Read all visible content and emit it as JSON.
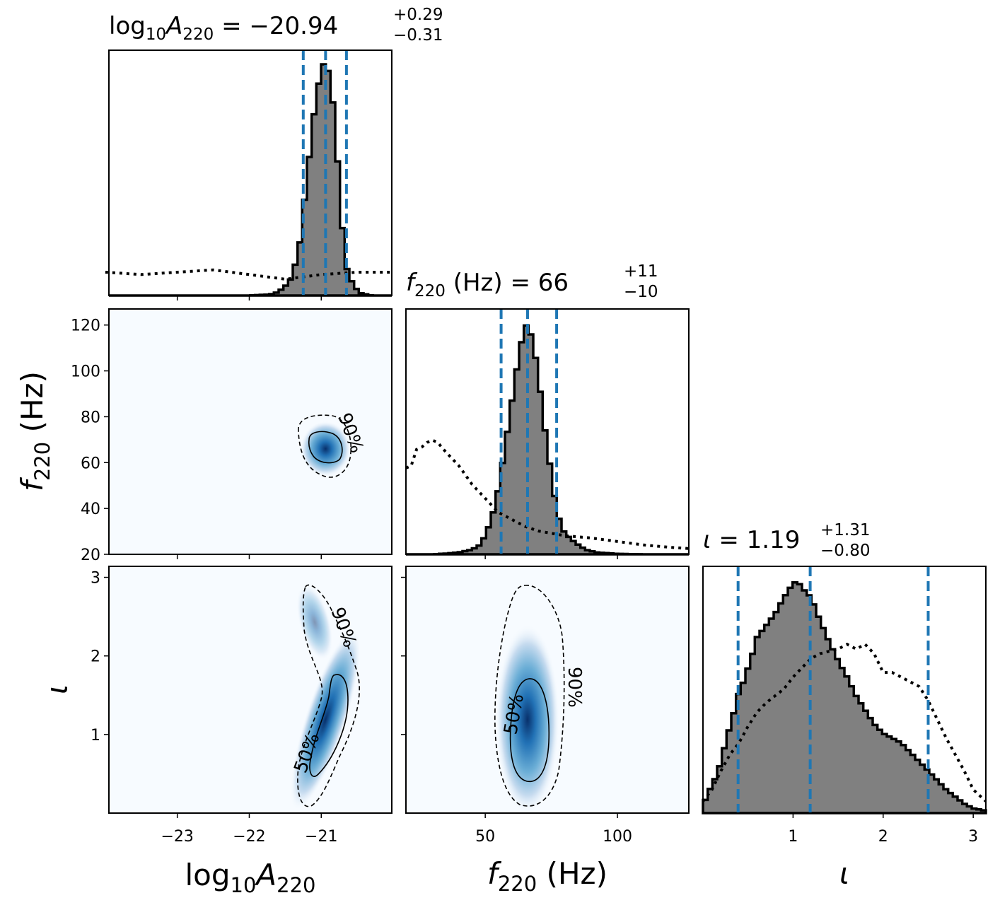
{
  "chart_data": {
    "type": "corner",
    "parameters": [
      {
        "key": "logA",
        "range": [
          -23.95,
          -20.02
        ],
        "ticks": [
          -23,
          -22,
          -21
        ],
        "tick_labels": [
          "−23",
          "−22",
          "−21"
        ]
      },
      {
        "key": "f",
        "range": [
          20,
          127
        ],
        "ticks": [
          50,
          100
        ],
        "tick_labels": [
          "50",
          "100"
        ],
        "yticks": [
          20,
          40,
          60,
          80,
          100,
          120
        ],
        "ytick_labels": [
          "20",
          "40",
          "60",
          "80",
          "100",
          "120"
        ]
      },
      {
        "key": "iota",
        "range": [
          0.0,
          3.14
        ],
        "ticks": [
          1,
          2,
          3
        ],
        "tick_labels": [
          "1",
          "2",
          "3"
        ]
      }
    ],
    "titles": {
      "logA": {
        "prefix": "log",
        "sub10": "10",
        "var": "A",
        "sub": "220",
        "value": " = −20.94",
        "sup": "+0.29",
        "low": "−0.31"
      },
      "f": {
        "var": "f",
        "sub": "220",
        "mid": " (Hz) = 66",
        "sup": "+11",
        "low": "−10"
      },
      "iota": {
        "var": "ι",
        "value": " = 1.19",
        "sup": "+1.31",
        "low": "−0.80"
      }
    },
    "axis_labels": {
      "logA": {
        "prefix": "log",
        "sub10": "10",
        "var": "A",
        "sub": "220"
      },
      "f": {
        "var": "f",
        "sub": "220",
        "unit": " (Hz)"
      },
      "iota": {
        "var": "ι"
      }
    },
    "quantiles": {
      "logA": [
        -21.25,
        -20.94,
        -20.65
      ],
      "f": [
        56,
        66,
        77
      ],
      "iota": [
        0.39,
        1.19,
        2.5
      ]
    },
    "hist_posterior": {
      "logA": [
        [
          -24.0,
          0
        ],
        [
          -22.0,
          0
        ],
        [
          -21.7,
          0.005
        ],
        [
          -21.6,
          0.015
        ],
        [
          -21.5,
          0.04
        ],
        [
          -21.4,
          0.08
        ],
        [
          -21.3,
          0.22
        ],
        [
          -21.2,
          0.5
        ],
        [
          -21.1,
          0.78
        ],
        [
          -21.05,
          0.88
        ],
        [
          -21.0,
          0.98
        ],
        [
          -20.95,
          1.0
        ],
        [
          -20.9,
          0.96
        ],
        [
          -20.85,
          0.86
        ],
        [
          -20.8,
          0.72
        ],
        [
          -20.75,
          0.45
        ],
        [
          -20.7,
          0.26
        ],
        [
          -20.65,
          0.12
        ],
        [
          -20.55,
          0.04
        ],
        [
          -20.45,
          0.01
        ],
        [
          -20.3,
          0
        ],
        [
          -20.02,
          0
        ]
      ],
      "f": [
        [
          20,
          0
        ],
        [
          30,
          0
        ],
        [
          35,
          0.003
        ],
        [
          40,
          0.008
        ],
        [
          45,
          0.02
        ],
        [
          48,
          0.04
        ],
        [
          50,
          0.08
        ],
        [
          52,
          0.14
        ],
        [
          54,
          0.22
        ],
        [
          56,
          0.35
        ],
        [
          58,
          0.5
        ],
        [
          60,
          0.65
        ],
        [
          62,
          0.8
        ],
        [
          64,
          0.93
        ],
        [
          66,
          1.0
        ],
        [
          68,
          0.91
        ],
        [
          70,
          0.78
        ],
        [
          72,
          0.58
        ],
        [
          74,
          0.42
        ],
        [
          76,
          0.26
        ],
        [
          78,
          0.15
        ],
        [
          80,
          0.09
        ],
        [
          84,
          0.05
        ],
        [
          88,
          0.02
        ],
        [
          92,
          0.008
        ],
        [
          100,
          0.002
        ],
        [
          110,
          0
        ],
        [
          127,
          0
        ]
      ],
      "iota": [
        [
          0.0,
          0.03
        ],
        [
          0.05,
          0.08
        ],
        [
          0.1,
          0.12
        ],
        [
          0.15,
          0.16
        ],
        [
          0.2,
          0.22
        ],
        [
          0.25,
          0.3
        ],
        [
          0.3,
          0.37
        ],
        [
          0.35,
          0.44
        ],
        [
          0.4,
          0.52
        ],
        [
          0.45,
          0.56
        ],
        [
          0.5,
          0.62
        ],
        [
          0.55,
          0.68
        ],
        [
          0.6,
          0.75
        ],
        [
          0.7,
          0.8
        ],
        [
          0.8,
          0.85
        ],
        [
          0.9,
          0.92
        ],
        [
          1.0,
          0.98
        ],
        [
          1.05,
          0.99
        ],
        [
          1.1,
          0.96
        ],
        [
          1.2,
          0.92
        ],
        [
          1.3,
          0.82
        ],
        [
          1.4,
          0.73
        ],
        [
          1.5,
          0.65
        ],
        [
          1.6,
          0.58
        ],
        [
          1.7,
          0.5
        ],
        [
          1.8,
          0.44
        ],
        [
          1.9,
          0.38
        ],
        [
          2.0,
          0.34
        ],
        [
          2.1,
          0.32
        ],
        [
          2.2,
          0.3
        ],
        [
          2.3,
          0.26
        ],
        [
          2.4,
          0.22
        ],
        [
          2.5,
          0.18
        ],
        [
          2.6,
          0.14
        ],
        [
          2.7,
          0.1
        ],
        [
          2.8,
          0.07
        ],
        [
          2.9,
          0.04
        ],
        [
          3.0,
          0.02
        ],
        [
          3.14,
          0.01
        ]
      ]
    },
    "hist_prior": {
      "logA": [
        [
          -24.0,
          0.1
        ],
        [
          -23.5,
          0.09
        ],
        [
          -23.0,
          0.1
        ],
        [
          -22.5,
          0.11
        ],
        [
          -22.0,
          0.09
        ],
        [
          -21.5,
          0.07
        ],
        [
          -21.0,
          0.09
        ],
        [
          -20.5,
          0.1
        ],
        [
          -20.02,
          0.1
        ]
      ],
      "f": [
        [
          20,
          0.37
        ],
        [
          22,
          0.38
        ],
        [
          24,
          0.45
        ],
        [
          26,
          0.46
        ],
        [
          28,
          0.48
        ],
        [
          30,
          0.49
        ],
        [
          32,
          0.48
        ],
        [
          35,
          0.44
        ],
        [
          40,
          0.38
        ],
        [
          45,
          0.3
        ],
        [
          50,
          0.24
        ],
        [
          55,
          0.18
        ],
        [
          60,
          0.15
        ],
        [
          65,
          0.12
        ],
        [
          70,
          0.1
        ],
        [
          80,
          0.08
        ],
        [
          90,
          0.07
        ],
        [
          100,
          0.055
        ],
        [
          110,
          0.04
        ],
        [
          120,
          0.03
        ],
        [
          127,
          0.025
        ]
      ],
      "iota": [
        [
          0.0,
          0.05
        ],
        [
          0.1,
          0.1
        ],
        [
          0.2,
          0.18
        ],
        [
          0.3,
          0.25
        ],
        [
          0.4,
          0.3
        ],
        [
          0.5,
          0.37
        ],
        [
          0.6,
          0.43
        ],
        [
          0.7,
          0.47
        ],
        [
          0.8,
          0.5
        ],
        [
          0.9,
          0.53
        ],
        [
          1.0,
          0.58
        ],
        [
          1.1,
          0.62
        ],
        [
          1.2,
          0.66
        ],
        [
          1.3,
          0.68
        ],
        [
          1.4,
          0.69
        ],
        [
          1.5,
          0.7
        ],
        [
          1.6,
          0.72
        ],
        [
          1.7,
          0.7
        ],
        [
          1.8,
          0.72
        ],
        [
          1.9,
          0.68
        ],
        [
          2.0,
          0.6
        ],
        [
          2.1,
          0.6
        ],
        [
          2.2,
          0.58
        ],
        [
          2.3,
          0.56
        ],
        [
          2.4,
          0.54
        ],
        [
          2.5,
          0.48
        ],
        [
          2.6,
          0.4
        ],
        [
          2.7,
          0.32
        ],
        [
          2.8,
          0.25
        ],
        [
          2.9,
          0.18
        ],
        [
          3.0,
          0.1
        ],
        [
          3.14,
          0.05
        ]
      ]
    },
    "density_panels": {
      "f_vs_logA": {
        "cx": -20.94,
        "cy": 66,
        "sx": 0.16,
        "sy": 5.5,
        "rho": -0.1
      },
      "iota_vs_logA": {
        "cx": -20.94,
        "cy": 1.19,
        "sx": 0.13,
        "sy": 0.55,
        "rho": 0.5
      },
      "iota_vs_f": {
        "cx": 66,
        "cy": 1.19,
        "sx": 5.5,
        "sy": 0.55,
        "rho": 0.0
      }
    },
    "contour_labels": {
      "fifty": "50%",
      "ninety": "90%"
    }
  }
}
